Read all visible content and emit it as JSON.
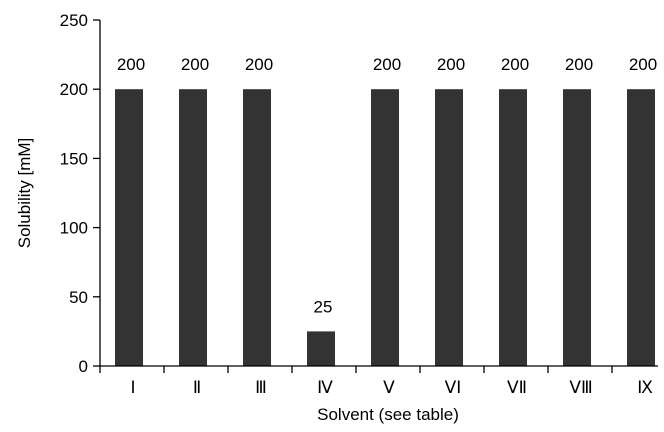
{
  "chart_data": {
    "type": "bar",
    "categories": [
      "Ⅰ",
      "Ⅱ",
      "Ⅲ",
      "Ⅳ",
      "Ⅴ",
      "ⅤⅠ",
      "ⅤⅡ",
      "ⅤⅢ",
      "Ⅸ"
    ],
    "values": [
      200,
      200,
      200,
      25,
      200,
      200,
      200,
      200,
      200
    ],
    "data_labels": [
      "200",
      "200",
      "200",
      "25",
      "200",
      "200",
      "200",
      "200",
      "200"
    ],
    "xlabel": "Solvent (see table)",
    "ylabel": "Solubility [mM]",
    "ylim": [
      0,
      250
    ],
    "yticks": [
      0,
      50,
      100,
      150,
      200,
      250
    ],
    "ytick_labels": [
      "0",
      "50",
      "100",
      "150",
      "200",
      "250"
    ],
    "grid": false,
    "bar_color": "#333333"
  }
}
